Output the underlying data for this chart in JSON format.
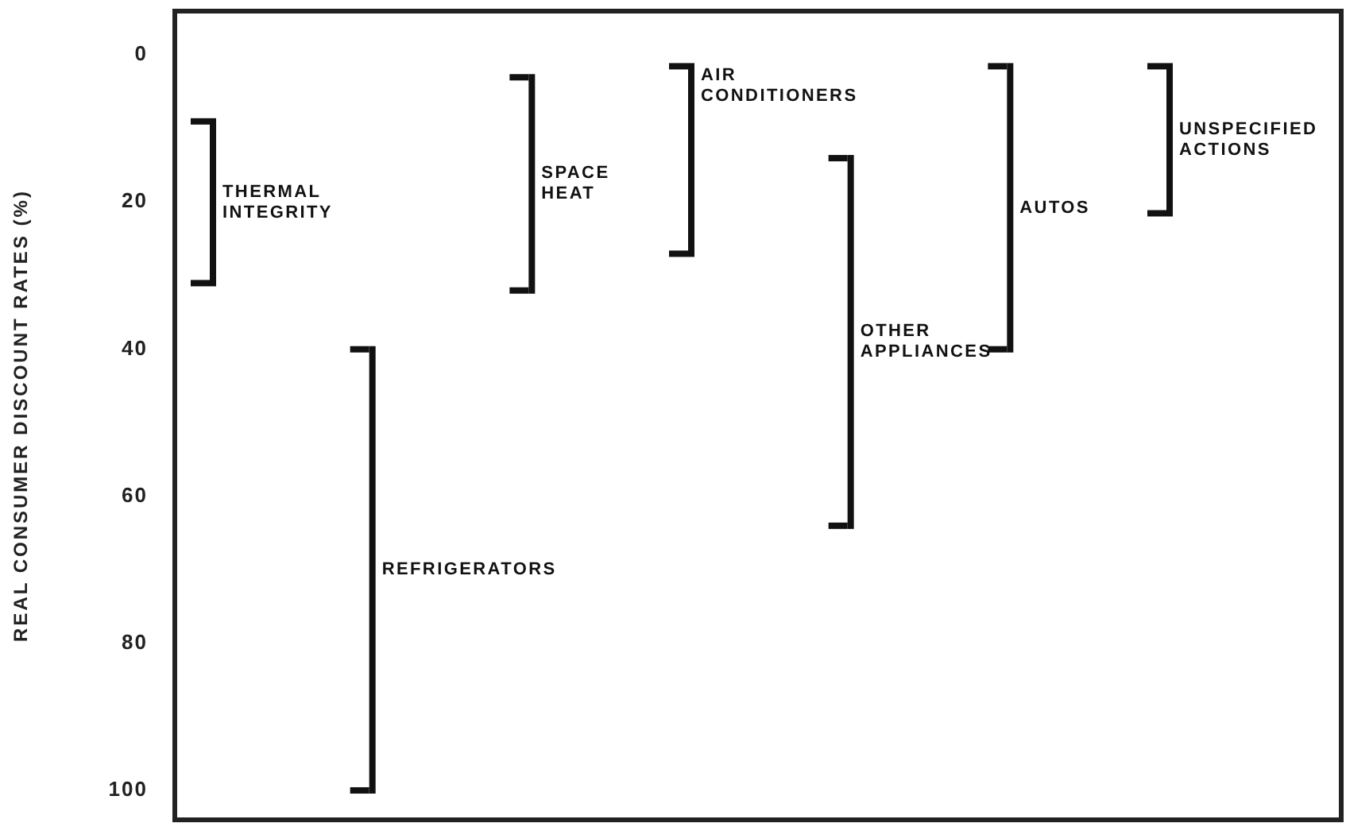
{
  "chart_data": {
    "type": "bar",
    "ylabel": "REAL CONSUMER DISCOUNT RATES (%)",
    "categories": [
      "THERMAL INTEGRITY",
      "REFRIGERATORS",
      "SPACE HEAT",
      "AIR CONDITIONERS",
      "OTHER APPLIANCES",
      "AUTOS",
      "UNSPECIFIED ACTIONS"
    ],
    "base": [
      9,
      40,
      3,
      1.5,
      14,
      1.5,
      1.5
    ],
    "values": [
      22,
      60,
      29,
      25.5,
      50,
      38.5,
      20
    ],
    "color": "#111111",
    "ylim": [
      104,
      -6
    ],
    "yticks": [
      0,
      20,
      40,
      60,
      80,
      100
    ],
    "grid": false
  }
}
